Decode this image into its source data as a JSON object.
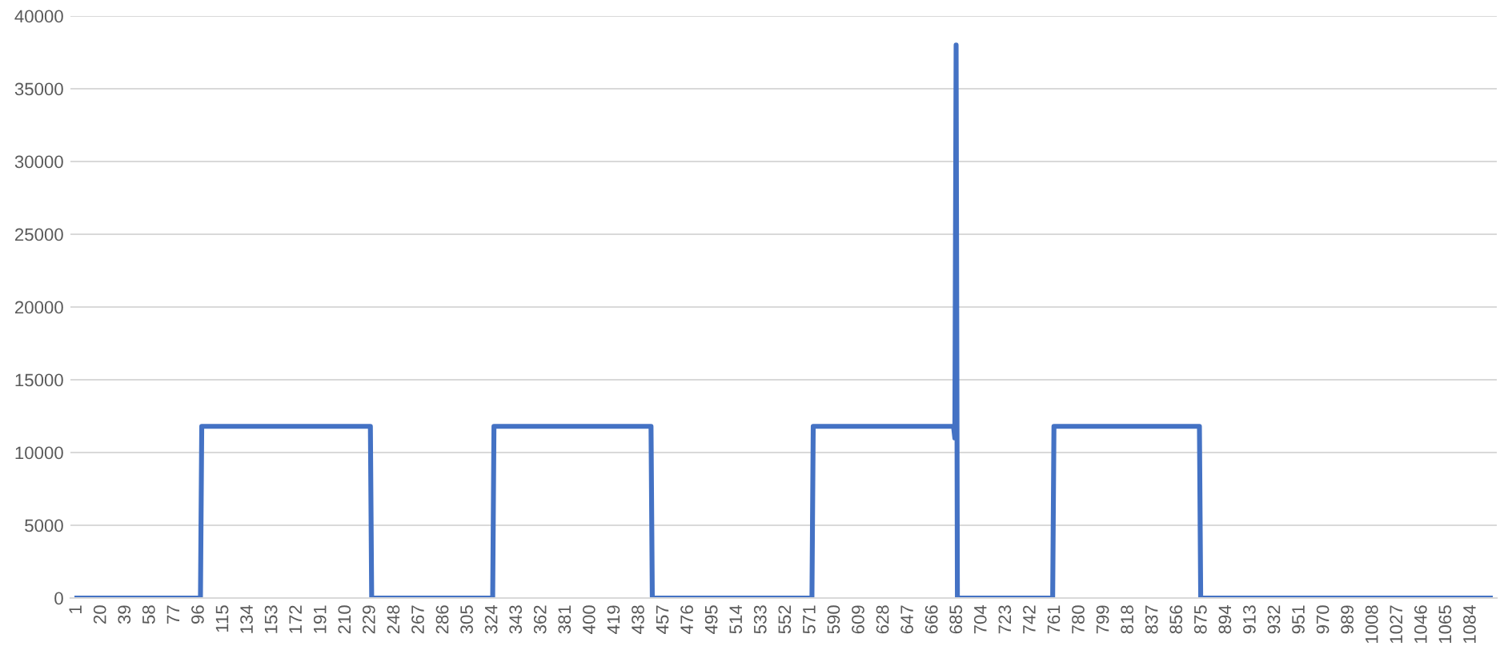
{
  "chart_data": {
    "type": "line",
    "color": "#4472c4",
    "x": [
      1,
      97,
      98,
      229,
      230,
      324,
      325,
      447,
      448,
      572,
      573,
      682,
      683,
      684,
      685,
      759,
      760,
      873,
      874,
      1099
    ],
    "values": [
      0,
      0,
      11800,
      11800,
      0,
      0,
      11800,
      11800,
      0,
      0,
      11800,
      11800,
      11000,
      38000,
      0,
      0,
      11800,
      11800,
      0,
      0
    ],
    "xlim": [
      -4,
      1104
    ],
    "xticks": [
      1,
      20,
      39,
      58,
      77,
      96,
      115,
      134,
      153,
      172,
      191,
      210,
      229,
      248,
      267,
      286,
      305,
      324,
      343,
      362,
      381,
      400,
      419,
      438,
      457,
      476,
      495,
      514,
      533,
      552,
      571,
      590,
      609,
      628,
      647,
      666,
      685,
      704,
      723,
      742,
      761,
      780,
      799,
      818,
      837,
      856,
      875,
      894,
      913,
      932,
      951,
      970,
      989,
      1008,
      1027,
      1046,
      1065,
      1084
    ],
    "ylim": [
      0,
      40000
    ],
    "yticks": [
      0,
      5000,
      10000,
      15000,
      20000,
      25000,
      30000,
      35000,
      40000
    ],
    "grid": "y",
    "marker": "none",
    "line_style": "solid",
    "legend": false
  }
}
